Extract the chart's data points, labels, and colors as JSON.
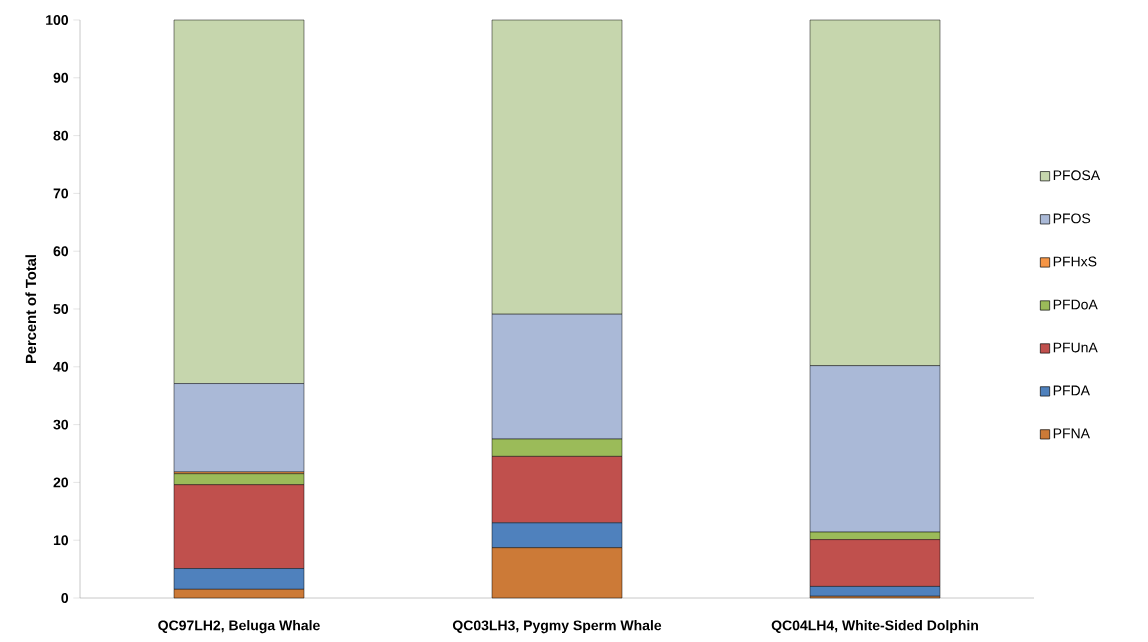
{
  "chart_data": {
    "type": "bar",
    "stacked": true,
    "ylabel": "Percent of Total",
    "categories": [
      "QC97LH2, Beluga Whale",
      "QC03LH3, Pygmy Sperm Whale",
      "QC04LH4, White-Sided Dolphin"
    ],
    "series": [
      {
        "name": "PFNA",
        "color": "#cc7a37",
        "values": [
          1.5,
          8.7,
          0.3
        ]
      },
      {
        "name": "PFDA",
        "color": "#4f81bd",
        "values": [
          3.6,
          4.3,
          1.7
        ]
      },
      {
        "name": "PFUnA",
        "color": "#c0504d",
        "values": [
          14.5,
          11.5,
          8.1
        ]
      },
      {
        "name": "PFDoA",
        "color": "#9bbb59",
        "values": [
          1.9,
          3.0,
          1.3
        ]
      },
      {
        "name": "PFHxS",
        "color": "#f59545",
        "values": [
          0.3,
          0,
          0
        ]
      },
      {
        "name": "PFOS",
        "color": "#aab9d7",
        "values": [
          15.3,
          21.6,
          28.8
        ]
      },
      {
        "name": "PFOSA",
        "color": "#c6d6ad",
        "values": [
          62.9,
          50.9,
          59.8
        ]
      }
    ],
    "ylim": [
      0,
      100
    ],
    "yticks": [
      0,
      10,
      20,
      30,
      40,
      50,
      60,
      70,
      80,
      90,
      100
    ],
    "legend": "right"
  }
}
